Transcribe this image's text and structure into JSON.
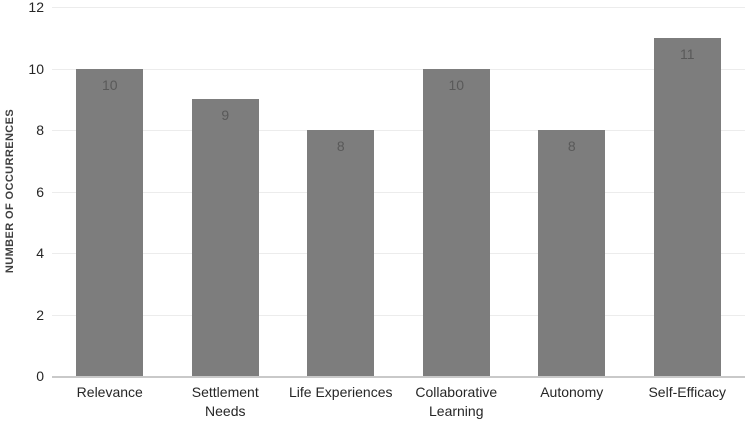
{
  "chart_data": {
    "type": "bar",
    "title": "",
    "xlabel": "",
    "ylabel": "NUMBER OF OCCURRENCES",
    "categories": [
      "Relevance",
      "Settlement\nNeeds",
      "Life Experiences",
      "Collaborative\nLearning",
      "Autonomy",
      "Self-Efficacy"
    ],
    "values": [
      10,
      9,
      8,
      10,
      8,
      11
    ],
    "data_labels": [
      "10",
      "9",
      "8",
      "10",
      "8",
      "11"
    ],
    "show_data_labels": true,
    "ylim": [
      0,
      12
    ],
    "yticks": [
      0,
      2,
      4,
      6,
      8,
      10,
      12
    ],
    "grid": true,
    "legend": false,
    "bar_color": "#7d7d7d",
    "data_label_color": "#595959",
    "tick_label_color": "#262626",
    "gridline_color": "#ececec",
    "axis_line_color": "#c9c9c9"
  }
}
